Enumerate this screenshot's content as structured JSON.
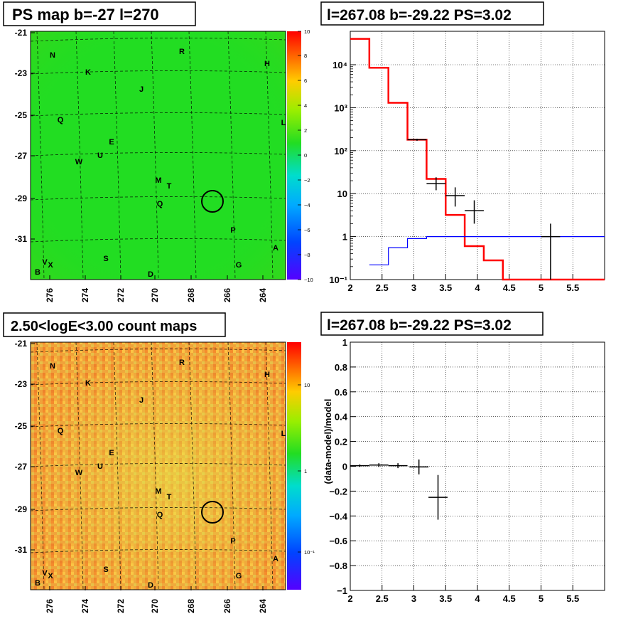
{
  "panels": {
    "tl_title": "PS map b=-27 l=270",
    "tr_title": "l=267.08 b=-29.22 PS=3.02",
    "bl_title": "2.50<logE<3.00 count maps",
    "br_title": "l=267.08 b=-29.22 PS=3.02"
  },
  "sky_map": {
    "b_ticks": [
      "-21",
      "-23",
      "-25",
      "-27",
      "-29",
      "-31"
    ],
    "l_ticks": [
      "276",
      "274",
      "272",
      "270",
      "268",
      "266",
      "264"
    ],
    "region_labels": [
      "N",
      "R",
      "H",
      "K",
      "J",
      "Q",
      "L",
      "E",
      "U",
      "W",
      "M",
      "T",
      "Q",
      "P",
      "A",
      "S",
      "G",
      "V",
      "B",
      "D",
      "X"
    ],
    "ps_colorbar_ticks": [
      "10",
      "8",
      "6",
      "4",
      "2",
      "0",
      "−2",
      "−4",
      "−6",
      "−8",
      "−10"
    ],
    "count_colorbar_ticks": [
      "10",
      "1",
      "10⁻¹"
    ],
    "colors": {
      "ps_bg": "#22dd22",
      "count_bg": "#f29a35"
    }
  },
  "chart_data": [
    {
      "type": "line",
      "title": "l=267.08 b=-29.22 PS=3.02",
      "xlabel": "",
      "ylabel": "",
      "log_y": true,
      "xlim": [
        2,
        6
      ],
      "ylim": [
        0.1,
        60000
      ],
      "x_ticks": [
        "2",
        "2.5",
        "3",
        "3.5",
        "4",
        "4.5",
        "5",
        "5.5"
      ],
      "y_ticks": [
        "10⁻¹",
        "1",
        "10",
        "10²",
        "10³",
        "10⁴"
      ],
      "grid": true,
      "series": [
        {
          "color": "#ff0000",
          "style": "step",
          "edges": [
            2.0,
            2.3,
            2.6,
            2.9,
            3.2,
            3.5,
            3.8,
            4.1,
            4.4,
            4.7,
            5.0,
            5.3,
            5.6,
            6.0
          ],
          "values": [
            40000,
            8500,
            1300,
            180,
            22,
            3.2,
            0.6,
            0.28,
            0.1,
            0.1,
            0.1,
            0.1,
            0.1
          ]
        },
        {
          "color": "#0000ff",
          "style": "step",
          "edges": [
            2.3,
            2.6,
            2.9,
            3.2,
            3.5,
            3.8,
            4.1,
            4.4,
            4.7,
            5.0,
            5.3,
            5.6,
            6.0
          ],
          "values": [
            0.22,
            0.55,
            0.9,
            1.0,
            1.0,
            1.0,
            1.0,
            1.0,
            1.0,
            1.0,
            1.0,
            1.0
          ]
        },
        {
          "color": "#000000",
          "style": "points",
          "x": [
            3.05,
            3.35,
            3.65,
            3.95,
            5.15
          ],
          "y": [
            180,
            17,
            9,
            4,
            1.0
          ],
          "xerr": [
            0.15,
            0.15,
            0.15,
            0.15,
            0.15
          ],
          "ylo": [
            170,
            12,
            5,
            2,
            0.1
          ],
          "yhi": [
            190,
            24,
            14,
            7,
            2.0
          ]
        }
      ]
    },
    {
      "type": "scatter",
      "title": "l=267.08 b=-29.22 PS=3.02",
      "xlabel": "",
      "ylabel": "(data-model)/model",
      "xlim": [
        2,
        6
      ],
      "ylim": [
        -1,
        1
      ],
      "x_ticks": [
        "2",
        "2.5",
        "3",
        "3.5",
        "4",
        "4.5",
        "5",
        "5.5"
      ],
      "y_ticks": [
        "−1",
        "−0.8",
        "−0.6",
        "−0.4",
        "−0.2",
        "0",
        "0.2",
        "0.4",
        "0.6",
        "0.8",
        "1"
      ],
      "grid": true,
      "series": [
        {
          "color": "#000000",
          "x": [
            2.15,
            2.45,
            2.75,
            3.08,
            3.38
          ],
          "y": [
            0.005,
            0.01,
            0.005,
            -0.005,
            -0.25
          ],
          "xerr": [
            0.15,
            0.15,
            0.15,
            0.15,
            0.15
          ],
          "yerr": [
            0.01,
            0.015,
            0.02,
            0.06,
            0.18
          ]
        }
      ]
    }
  ]
}
